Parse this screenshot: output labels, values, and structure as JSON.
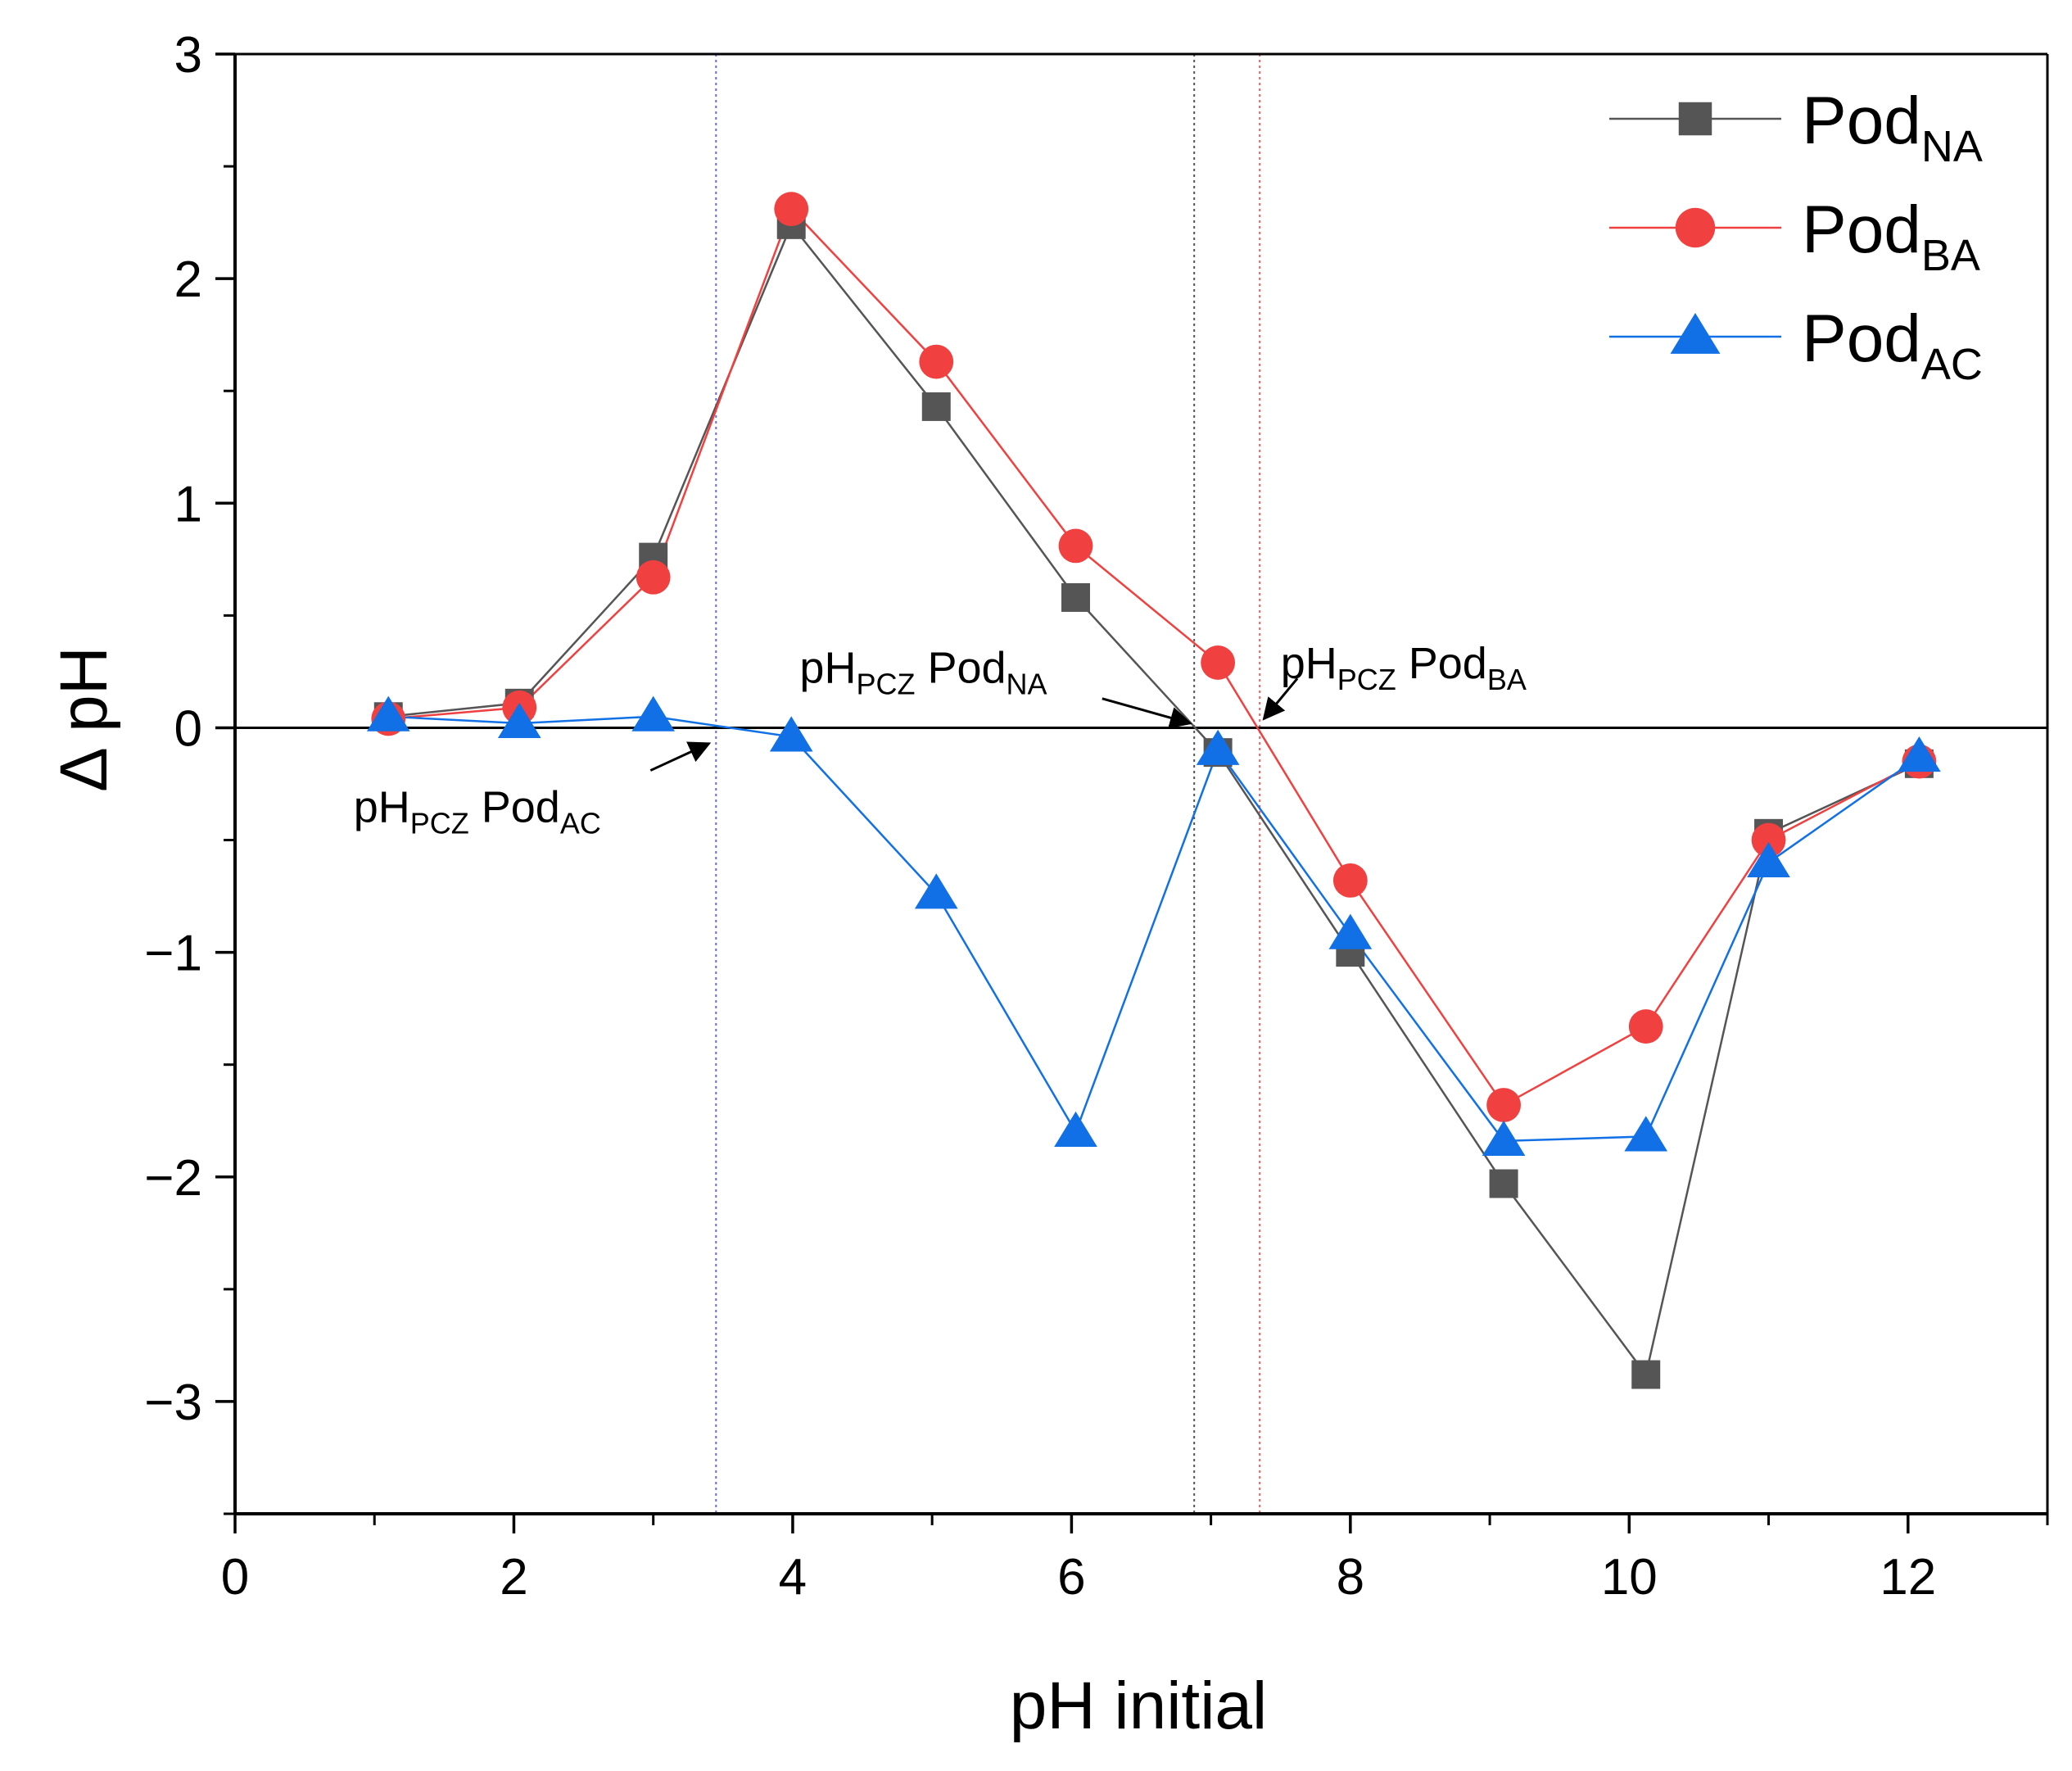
{
  "chart_data": {
    "type": "line",
    "title": "",
    "xlabel": "pH initial",
    "ylabel": "Δ pH",
    "xlim": [
      0,
      13
    ],
    "ylim": [
      -3.5,
      3
    ],
    "xticks": [
      0,
      2,
      4,
      6,
      8,
      10,
      12
    ],
    "yticks": [
      -3,
      -2,
      -1,
      0,
      1,
      2,
      3
    ],
    "xtick_labels": [
      "0",
      "2",
      "4",
      "6",
      "8",
      "10",
      "12"
    ],
    "ytick_labels": [
      "−3",
      "−2",
      "−1",
      "0",
      "1",
      "2",
      "3"
    ],
    "grid": false,
    "legend_position": "top-right",
    "zero_line": 0,
    "series": [
      {
        "id": "na",
        "name": "PodNA",
        "name_main": "Pod",
        "name_sub": "NA",
        "marker": "square",
        "color": "#555555",
        "line_color": "#555555",
        "x": [
          1.1,
          2.04,
          3.0,
          3.99,
          5.03,
          6.03,
          7.05,
          8.0,
          9.1,
          10.12,
          11.0,
          12.08
        ],
        "y": [
          0.05,
          0.11,
          0.76,
          2.24,
          1.43,
          0.58,
          -0.11,
          -1.0,
          -2.03,
          -2.88,
          -0.47,
          -0.16
        ]
      },
      {
        "id": "ba",
        "name": "PodBA",
        "name_main": "Pod",
        "name_sub": "BA",
        "marker": "circle",
        "color": "#f04040",
        "line_color": "#f04040",
        "x": [
          1.1,
          2.04,
          3.0,
          3.99,
          5.03,
          6.03,
          7.05,
          8.0,
          9.1,
          10.12,
          11.0,
          12.08
        ],
        "y": [
          0.04,
          0.09,
          0.67,
          2.31,
          1.63,
          0.81,
          0.29,
          -0.68,
          -1.68,
          -1.33,
          -0.5,
          -0.15
        ]
      },
      {
        "id": "ac",
        "name": "PodAC",
        "name_main": "Pod",
        "name_sub": "AC",
        "marker": "triangle",
        "color": "#1170e6",
        "line_color": "#1170e6",
        "x": [
          1.1,
          2.04,
          3.0,
          3.99,
          5.03,
          6.03,
          7.05,
          8.0,
          9.1,
          10.12,
          11.0,
          12.08
        ],
        "y": [
          0.05,
          0.02,
          0.05,
          -0.04,
          -0.74,
          -1.8,
          -0.1,
          -0.92,
          -1.84,
          -1.82,
          -0.6,
          -0.13
        ]
      }
    ],
    "vertical_lines": [
      {
        "x": 3.45,
        "color": "#6a6af0"
      },
      {
        "x": 6.88,
        "color": "#555555"
      },
      {
        "x": 7.35,
        "color": "#f06060"
      }
    ],
    "annotations": [
      {
        "id": "ac",
        "main": "pH",
        "sub": "PCZ",
        "suffix_main": " Pod",
        "suffix_sub": "AC",
        "text_x": 0.85,
        "text_y": -0.42,
        "anchor": "start",
        "arrow_from": [
          2.98,
          -0.19
        ],
        "arrow_to": [
          3.4,
          -0.07
        ]
      },
      {
        "id": "na",
        "main": "pH",
        "sub": "PCZ",
        "suffix_main": " Pod",
        "suffix_sub": "NA",
        "text_x": 4.05,
        "text_y": 0.2,
        "anchor": "start",
        "arrow_from": [
          6.22,
          0.13
        ],
        "arrow_to": [
          6.85,
          0.02
        ]
      },
      {
        "id": "ba",
        "main": "pH",
        "sub": "PCZ",
        "suffix_main": " Pod",
        "suffix_sub": "BA",
        "text_x": 7.5,
        "text_y": 0.22,
        "anchor": "start",
        "arrow_from": [
          7.62,
          0.22
        ],
        "arrow_to": [
          7.38,
          0.04
        ]
      }
    ]
  }
}
